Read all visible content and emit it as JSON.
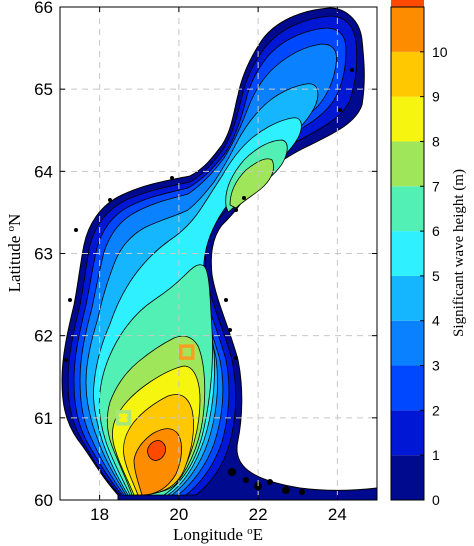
{
  "map": {
    "x_axis": {
      "label": "Longitude ",
      "label_sup": "o",
      "label_unit": "E",
      "ticks": [
        "18",
        "20",
        "22",
        "24"
      ],
      "range": [
        17,
        25
      ]
    },
    "y_axis": {
      "label": "Latitude ",
      "label_sup": "o",
      "label_unit": "N",
      "ticks": [
        "60",
        "61",
        "62",
        "63",
        "64",
        "65",
        "66"
      ],
      "range": [
        60,
        66
      ]
    },
    "grid": true,
    "markers": [
      {
        "lon": 20.2,
        "lat": 61.8,
        "color": "#f7a020",
        "shape": "square"
      },
      {
        "lon": 18.6,
        "lat": 61.0,
        "color": "#a8e67a",
        "shape": "square"
      }
    ]
  },
  "colorbar": {
    "label": "Significant wave height (m)",
    "ticks": [
      "0",
      "1",
      "2",
      "3",
      "4",
      "5",
      "6",
      "7",
      "8",
      "9",
      "10"
    ],
    "range": [
      0,
      11
    ],
    "colors": [
      "#000a8f",
      "#0018d6",
      "#0048ff",
      "#0a82ff",
      "#16b6ff",
      "#2ef0ff",
      "#52f0b4",
      "#9fe65a",
      "#f5f510",
      "#ffc800",
      "#fe8c00",
      "#fe4a00"
    ]
  }
}
